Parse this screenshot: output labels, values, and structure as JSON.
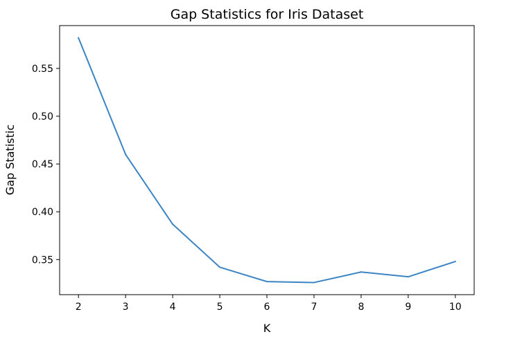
{
  "chart_data": {
    "type": "line",
    "title": "Gap Statistics for Iris Dataset",
    "xlabel": "K",
    "ylabel": "Gap Statistic",
    "x": [
      2,
      3,
      4,
      5,
      6,
      7,
      8,
      9,
      10
    ],
    "series": [
      {
        "values": [
          0.582,
          0.46,
          0.387,
          0.342,
          0.327,
          0.326,
          0.337,
          0.332,
          0.348
        ],
        "color": "#3b84c4"
      }
    ],
    "xticks": [
      2,
      3,
      4,
      5,
      6,
      7,
      8,
      9,
      10
    ],
    "yticks": [
      0.35,
      0.4,
      0.45,
      0.5,
      0.55
    ],
    "ytick_labels": [
      "0.35",
      "0.40",
      "0.45",
      "0.50",
      "0.55"
    ],
    "xlim": [
      1.6,
      10.4
    ],
    "ylim": [
      0.3133,
      0.5948
    ],
    "grid": false,
    "legend": "none"
  }
}
